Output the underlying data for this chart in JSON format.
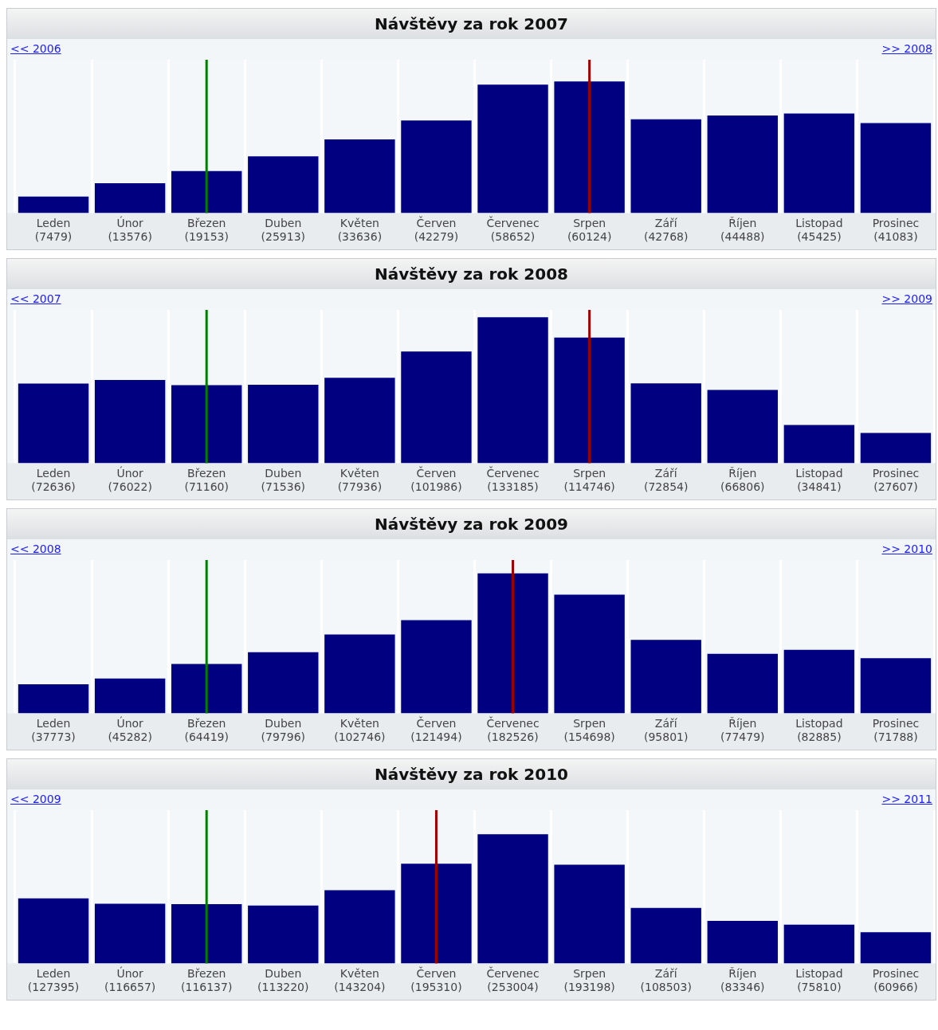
{
  "chart_data": [
    {
      "type": "bar",
      "title": "Návštěvy za rok 2007",
      "categories": [
        "Leden",
        "Únor",
        "Březen",
        "Duben",
        "Květen",
        "Červen",
        "Červenec",
        "Srpen",
        "Září",
        "Říjen",
        "Listopad",
        "Prosinec"
      ],
      "values": [
        7479,
        13576,
        19153,
        25913,
        33636,
        42279,
        58652,
        60124,
        42768,
        44488,
        45425,
        41083
      ],
      "value_labels": [
        "(7479)",
        "(13576)",
        "(19153)",
        "(25913)",
        "(33636)",
        "(42279)",
        "(58652)",
        "(60124)",
        "(42768)",
        "(44488)",
        "(45425)",
        "(41083)"
      ],
      "color": "#000080",
      "grid": "x",
      "annotations": [
        "<< 2006",
        ">> 2008"
      ],
      "ref_lines": [
        {
          "axis": "x",
          "value": "Březen",
          "color": "#008000"
        },
        {
          "axis": "x",
          "value": "Srpen",
          "color": "#a00000"
        }
      ]
    },
    {
      "type": "bar",
      "title": "Návštěvy za rok 2008",
      "categories": [
        "Leden",
        "Únor",
        "Březen",
        "Duben",
        "Květen",
        "Červen",
        "Červenec",
        "Srpen",
        "Září",
        "Říjen",
        "Listopad",
        "Prosinec"
      ],
      "values": [
        72636,
        76022,
        71160,
        71536,
        77936,
        101986,
        133185,
        114746,
        72854,
        66806,
        34841,
        27607
      ],
      "value_labels": [
        "(72636)",
        "(76022)",
        "(71160)",
        "(71536)",
        "(77936)",
        "(101986)",
        "(133185)",
        "(114746)",
        "(72854)",
        "(66806)",
        "(34841)",
        "(27607)"
      ],
      "color": "#000080",
      "grid": "x",
      "annotations": [
        "<< 2007",
        ">> 2009"
      ],
      "ref_lines": [
        {
          "axis": "x",
          "value": "Březen",
          "color": "#008000"
        },
        {
          "axis": "x",
          "value": "Srpen",
          "color": "#a00000"
        }
      ]
    },
    {
      "type": "bar",
      "title": "Návštěvy za rok 2009",
      "categories": [
        "Leden",
        "Únor",
        "Březen",
        "Duben",
        "Květen",
        "Červen",
        "Červenec",
        "Srpen",
        "Září",
        "Říjen",
        "Listopad",
        "Prosinec"
      ],
      "values": [
        37773,
        45282,
        64419,
        79796,
        102746,
        121494,
        182526,
        154698,
        95801,
        77479,
        82885,
        71788
      ],
      "value_labels": [
        "(37773)",
        "(45282)",
        "(64419)",
        "(79796)",
        "(102746)",
        "(121494)",
        "(182526)",
        "(154698)",
        "(95801)",
        "(77479)",
        "(82885)",
        "(71788)"
      ],
      "color": "#000080",
      "grid": "x",
      "annotations": [
        "<< 2008",
        ">> 2010"
      ],
      "ref_lines": [
        {
          "axis": "x",
          "value": "Březen",
          "color": "#008000"
        },
        {
          "axis": "x",
          "value": "Červenec",
          "color": "#a00000"
        }
      ]
    },
    {
      "type": "bar",
      "title": "Návštěvy za rok 2010",
      "categories": [
        "Leden",
        "Únor",
        "Březen",
        "Duben",
        "Květen",
        "Červen",
        "Červenec",
        "Srpen",
        "Září",
        "Říjen",
        "Listopad",
        "Prosinec"
      ],
      "values": [
        127395,
        116657,
        116137,
        113220,
        143204,
        195310,
        253004,
        193198,
        108503,
        83346,
        75810,
        60966
      ],
      "value_labels": [
        "(127395)",
        "(116657)",
        "(116137)",
        "(113220)",
        "(143204)",
        "(195310)",
        "(253004)",
        "(193198)",
        "(108503)",
        "(83346)",
        "(75810)",
        "(60966)"
      ],
      "color": "#000080",
      "grid": "x",
      "annotations": [
        "<< 2009",
        ">> 2011"
      ],
      "ref_lines": [
        {
          "axis": "x",
          "value": "Březen",
          "color": "#008000"
        },
        {
          "axis": "x",
          "value": "Červen",
          "color": "#a00000"
        }
      ]
    }
  ]
}
